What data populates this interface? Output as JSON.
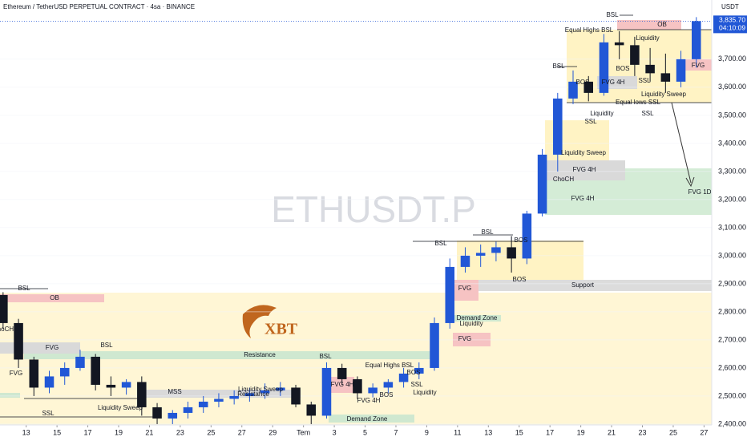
{
  "chart_data": {
    "type": "candlestick",
    "title": "Ethereum / TetherUSD PERPETUAL CONTRACT · 4sa · BINANCE",
    "watermark": "ETHUSDT.P",
    "logo": "XBT",
    "y_unit": "USDT",
    "countdown": "04:10:09",
    "up_color": "#2157d6",
    "down_color": "#131722",
    "x": [
      -1.5,
      -0.5,
      0.5,
      1.5,
      2.5,
      3.5,
      4.5,
      5.5,
      6.5,
      7.5,
      8.5,
      9.5,
      10.5,
      11.5,
      12.5,
      13.5,
      14.5,
      15.5,
      16.5,
      17.5,
      18.5,
      19.5,
      20.5,
      21.5,
      22.5,
      23.5,
      24.5,
      25.5,
      26.5,
      27.5,
      28.5,
      29.5,
      30.5,
      31.5,
      32.5,
      33.5,
      34.5,
      35.5,
      36.5,
      37.5,
      38.5,
      39.5,
      40.5,
      41.5,
      42.5,
      43.5
    ],
    "open": [
      2860,
      2760,
      2630,
      2530,
      2570,
      2600,
      2640,
      2540,
      2530,
      2550,
      2460,
      2420,
      2440,
      2460,
      2480,
      2490,
      2500,
      2510,
      2520,
      2530,
      2470,
      2430,
      2600,
      2560,
      2510,
      2530,
      2550,
      2580,
      2600,
      2760,
      2960,
      3000,
      3010,
      3030,
      2990,
      3150,
      3360,
      3560,
      3620,
      3580,
      3760,
      3750,
      3680,
      3650,
      3620,
      3700
    ],
    "high": [
      2870,
      2775,
      2640,
      2590,
      2620,
      2665,
      2650,
      2570,
      2560,
      2570,
      2475,
      2450,
      2480,
      2500,
      2510,
      2520,
      2530,
      2545,
      2550,
      2540,
      2480,
      2620,
      2615,
      2570,
      2545,
      2560,
      2600,
      2620,
      2780,
      2990,
      3030,
      3040,
      3050,
      3070,
      3160,
      3380,
      3580,
      3660,
      3640,
      3790,
      3800,
      3780,
      3740,
      3720,
      3730,
      3850
    ],
    "low": [
      2740,
      2600,
      2500,
      2510,
      2540,
      2590,
      2520,
      2500,
      2505,
      2430,
      2400,
      2400,
      2420,
      2440,
      2460,
      2470,
      2480,
      2490,
      2500,
      2460,
      2400,
      2420,
      2540,
      2490,
      2495,
      2510,
      2530,
      2560,
      2590,
      2740,
      2940,
      2960,
      2980,
      2940,
      2970,
      3140,
      3300,
      3540,
      3550,
      3570,
      3700,
      3640,
      3620,
      3580,
      3600,
      3670
    ],
    "close": [
      2760,
      2630,
      2530,
      2570,
      2600,
      2640,
      2540,
      2530,
      2550,
      2460,
      2420,
      2440,
      2460,
      2480,
      2490,
      2500,
      2510,
      2520,
      2530,
      2470,
      2430,
      2600,
      2560,
      2510,
      2530,
      2550,
      2580,
      2600,
      2760,
      2960,
      3000,
      3010,
      3030,
      2990,
      3150,
      3360,
      3560,
      3620,
      3580,
      3760,
      3750,
      3680,
      3650,
      3620,
      3700,
      3835.7
    ],
    "last_price": {
      "value": 3835.7,
      "label": "3,835.70"
    },
    "xlim": [
      -1.7,
      44.5
    ],
    "ylim": [
      2397,
      3911
    ],
    "xticks": [
      {
        "value": 0,
        "label": "13"
      },
      {
        "value": 2,
        "label": "15"
      },
      {
        "value": 4,
        "label": "17"
      },
      {
        "value": 6,
        "label": "19"
      },
      {
        "value": 8,
        "label": "21"
      },
      {
        "value": 10,
        "label": "23"
      },
      {
        "value": 12,
        "label": "25"
      },
      {
        "value": 14,
        "label": "27"
      },
      {
        "value": 16,
        "label": "29"
      },
      {
        "value": 18,
        "label": "Tem"
      },
      {
        "value": 20,
        "label": "3"
      },
      {
        "value": 22,
        "label": "5"
      },
      {
        "value": 24,
        "label": "7"
      },
      {
        "value": 26,
        "label": "9"
      },
      {
        "value": 28,
        "label": "11"
      },
      {
        "value": 30,
        "label": "13"
      },
      {
        "value": 32,
        "label": "15"
      },
      {
        "value": 34,
        "label": "17"
      },
      {
        "value": 36,
        "label": "19"
      },
      {
        "value": 38,
        "label": "21"
      },
      {
        "value": 40,
        "label": "23"
      },
      {
        "value": 42,
        "label": "25"
      },
      {
        "value": 44,
        "label": "27"
      }
    ],
    "yticks": [
      {
        "value": 2400,
        "label": "2,400.00"
      },
      {
        "value": 2500,
        "label": "2,500.00"
      },
      {
        "value": 2600,
        "label": "2,600.00"
      },
      {
        "value": 2700,
        "label": "2,700.00"
      },
      {
        "value": 2800,
        "label": "2,800.00"
      },
      {
        "value": 2900,
        "label": "2,900.00"
      },
      {
        "value": 3000,
        "label": "3,000.00"
      },
      {
        "value": 3100,
        "label": "3,100.00"
      },
      {
        "value": 3200,
        "label": "3,200.00"
      },
      {
        "value": 3300,
        "label": "3,300.00"
      },
      {
        "value": 3400,
        "label": "3,400.00"
      },
      {
        "value": 3500,
        "label": "3,500.00"
      },
      {
        "value": 3600,
        "label": "3,600.00"
      },
      {
        "value": 3700,
        "label": "3,700.00"
      }
    ],
    "annotations": [
      "BSL",
      "OB",
      "Equal Highs BSL",
      "Liquidity",
      "BSL",
      "BOS",
      "BOS",
      "FVG 4H",
      "SSL",
      "FVG",
      "Liquidity Sweep",
      "Equal lows SSL",
      "Liquidity",
      "SSL",
      "SSL",
      "Liquidity Sweep",
      "FVG 4H",
      "ChoCH",
      "FVG 4H",
      "FVG 1D",
      "BSL",
      "BSL",
      "BOS",
      "BOS",
      "Support",
      "FVG",
      "BSL",
      "OB",
      "Demand Zone",
      "Liquidity",
      "FVG",
      "ChoCH",
      "FVG",
      "BSL",
      "Resistance",
      "BSL",
      "FVG",
      "Equal Highs BSL",
      "BOS",
      "FVG 4H",
      "SSL",
      "MSS",
      "Liquidity Sweep",
      "Resistance",
      "SSL",
      "Liquidity Sweep",
      "BOS",
      "Liquidity",
      "FVG 4H",
      "Demand Zone"
    ]
  }
}
